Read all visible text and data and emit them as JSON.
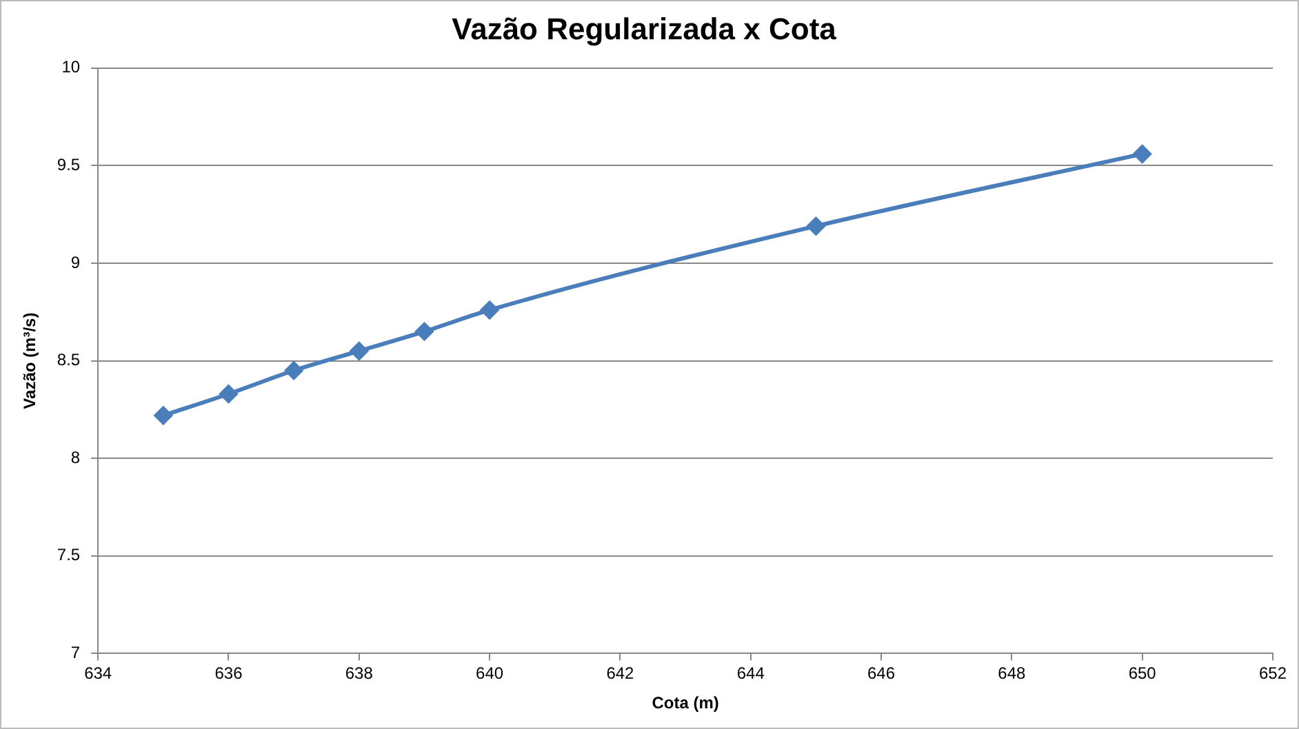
{
  "chart_data": {
    "type": "line",
    "title": "Vazão Regularizada x Cota",
    "xlabel": "Cota (m)",
    "ylabel": "Vazão (m³/s)",
    "x": [
      635,
      636,
      637,
      638,
      639,
      640,
      645,
      650
    ],
    "series": [
      {
        "color": "#4a7ebb",
        "values": [
          8.22,
          8.33,
          8.45,
          8.55,
          8.65,
          8.76,
          9.19,
          9.56
        ]
      }
    ],
    "xlim": [
      634,
      652
    ],
    "xticks": [
      634,
      636,
      638,
      640,
      642,
      644,
      646,
      648,
      650,
      652
    ],
    "ylim": [
      7,
      10
    ],
    "yticks": [
      7,
      7.5,
      8,
      8.5,
      9,
      9.5,
      10
    ],
    "grid": "y",
    "legend": false,
    "marker": "diamond",
    "line_style": "solid"
  }
}
